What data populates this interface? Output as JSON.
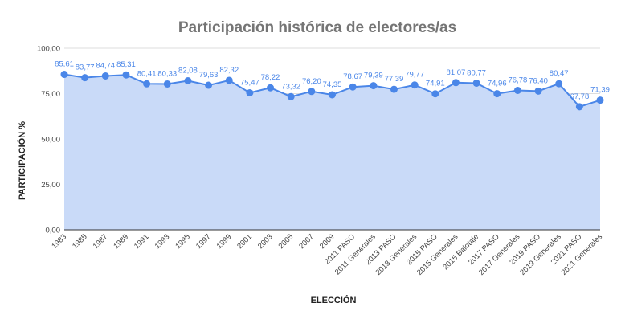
{
  "chart_data": {
    "type": "area",
    "title": "Participación histórica de electores/as",
    "xlabel": "ELECCIÓN",
    "ylabel": "PARTICIPACIÓN %",
    "ylim": [
      0,
      100
    ],
    "yticks": [
      "0,00",
      "25,00",
      "50,00",
      "75,00",
      "100,00"
    ],
    "grid": true,
    "legend": "none",
    "colors": {
      "line": "#4a86e8",
      "fill": "#c9daf8",
      "grid": "#dddddd",
      "labels": "#4a86e8"
    },
    "categories": [
      "1983",
      "1985",
      "1987",
      "1989",
      "1991",
      "1993",
      "1995",
      "1997",
      "1999",
      "2001",
      "2003",
      "2005",
      "2007",
      "2009",
      "2011 PASO",
      "2011 Generales",
      "2013 PASO",
      "2013 Generales",
      "2015 PASO",
      "2015 Generales",
      "2015 Balotaje",
      "2017 PASO",
      "2017 Generales",
      "2019 PASO",
      "2019 Generales",
      "2021 PASO",
      "2021 Generales"
    ],
    "values": [
      85.61,
      83.77,
      84.74,
      85.31,
      80.41,
      80.33,
      82.08,
      79.63,
      82.32,
      75.47,
      78.22,
      73.32,
      76.2,
      74.35,
      78.67,
      79.39,
      77.39,
      79.77,
      74.91,
      81.07,
      80.77,
      74.96,
      76.78,
      76.4,
      80.47,
      67.78,
      71.39
    ],
    "value_labels": [
      "85,61",
      "83,77",
      "84,74",
      "85,31",
      "80,41",
      "80,33",
      "82,08",
      "79,63",
      "82,32",
      "75,47",
      "78,22",
      "73,32",
      "76,20",
      "74,35",
      "78,67",
      "79,39",
      "77,39",
      "79,77",
      "74,91",
      "81,07",
      "80,77",
      "74,96",
      "76,78",
      "76,40",
      "80,47",
      "67,78",
      "71,39"
    ]
  }
}
